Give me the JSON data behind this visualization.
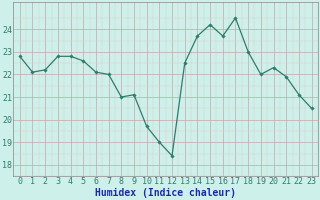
{
  "x": [
    0,
    1,
    2,
    3,
    4,
    5,
    6,
    7,
    8,
    9,
    10,
    11,
    12,
    13,
    14,
    15,
    16,
    17,
    18,
    19,
    20,
    21,
    22,
    23
  ],
  "y": [
    22.8,
    22.1,
    22.2,
    22.8,
    22.8,
    22.6,
    22.1,
    22.0,
    21.0,
    21.1,
    19.7,
    19.0,
    18.4,
    22.5,
    23.7,
    24.2,
    23.7,
    24.5,
    23.0,
    22.0,
    22.3,
    21.9,
    21.1,
    20.5
  ],
  "line_color": "#2e7d6e",
  "marker": "D",
  "marker_size": 1.8,
  "line_width": 0.9,
  "bg_color": "#cef0ea",
  "grid_color_major": "#c8a8a8",
  "grid_color_minor": "#dcc8c8",
  "xlabel": "Humidex (Indice chaleur)",
  "xlabel_fontsize": 7,
  "xlabel_color": "#1a2aaa",
  "tick_fontsize": 6,
  "tick_color": "#2e7d6e",
  "ylim": [
    17.5,
    25.2
  ],
  "xlim": [
    -0.5,
    23.5
  ],
  "yticks": [
    18,
    19,
    20,
    21,
    22,
    23,
    24
  ],
  "xtick_labels": [
    "0",
    "1",
    "2",
    "3",
    "4",
    "5",
    "6",
    "7",
    "8",
    "9",
    "10",
    "11",
    "12",
    "13",
    "14",
    "15",
    "16",
    "17",
    "18",
    "19",
    "20",
    "21",
    "22",
    "23"
  ]
}
